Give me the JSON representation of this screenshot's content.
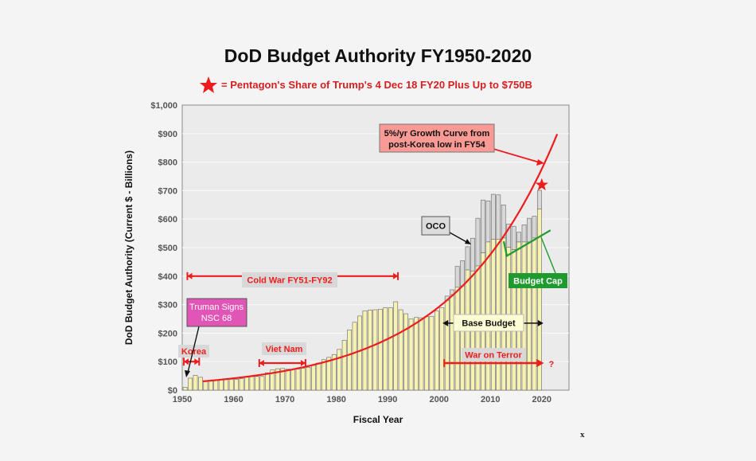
{
  "chart_data": {
    "type": "bar",
    "title": "DoD Budget Authority FY1950-2020",
    "subtitle": "= Pentagon's Share of Trump's 4 Dec 18 FY20 Plus Up to $750B",
    "xlabel": "Fiscal Year",
    "ylabel": "DoD Budget Authority (Current $ - Billions)",
    "xlim": [
      1950,
      2025.3
    ],
    "ylim": [
      0,
      1000
    ],
    "x_ticks": [
      1950,
      1960,
      1970,
      1980,
      1990,
      2000,
      2010,
      2020
    ],
    "y_ticks": [
      0,
      100,
      200,
      300,
      400,
      500,
      600,
      700,
      800,
      900,
      1000
    ],
    "y_tick_labels": [
      "$0",
      "$100",
      "$200",
      "$300",
      "$400",
      "$500",
      "$600",
      "$700",
      "$800",
      "$900",
      "$1,000"
    ],
    "grid": true,
    "stacked": true,
    "years": [
      1950,
      1951,
      1952,
      1953,
      1954,
      1955,
      1956,
      1957,
      1958,
      1959,
      1960,
      1961,
      1962,
      1963,
      1964,
      1965,
      1966,
      1967,
      1968,
      1969,
      1970,
      1971,
      1972,
      1973,
      1974,
      1975,
      1976,
      1977,
      1978,
      1979,
      1980,
      1981,
      1982,
      1983,
      1984,
      1985,
      1986,
      1987,
      1988,
      1989,
      1990,
      1991,
      1992,
      1993,
      1994,
      1995,
      1996,
      1997,
      1998,
      1999,
      2000,
      2001,
      2002,
      2003,
      2004,
      2005,
      2006,
      2007,
      2008,
      2009,
      2010,
      2011,
      2012,
      2013,
      2014,
      2015,
      2016,
      2017,
      2018,
      2019
    ],
    "series": [
      {
        "name": "Base Budget",
        "color": "#f7f2b2",
        "values": [
          10,
          42,
          52,
          45,
          30,
          32,
          35,
          36,
          37,
          38,
          38,
          40,
          46,
          47,
          48,
          48,
          61,
          71,
          75,
          76,
          74,
          72,
          74,
          77,
          80,
          87,
          95,
          107,
          115,
          125,
          143,
          175,
          211,
          238,
          260,
          278,
          281,
          282,
          284,
          289,
          289,
          310,
          282,
          268,
          250,
          255,
          254,
          258,
          259,
          278,
          289,
          315,
          335,
          361,
          366,
          422,
          417,
          436,
          482,
          520,
          529,
          529,
          534,
          501,
          493,
          520,
          520,
          520,
          534,
          636
        ]
      },
      {
        "name": "OCO",
        "color": "#d8d8d8",
        "values": [
          0,
          0,
          0,
          0,
          0,
          0,
          0,
          0,
          0,
          0,
          0,
          0,
          0,
          0,
          0,
          0,
          0,
          0,
          0,
          0,
          0,
          0,
          0,
          0,
          0,
          0,
          0,
          0,
          0,
          0,
          0,
          0,
          0,
          0,
          0,
          0,
          0,
          0,
          0,
          0,
          0,
          0,
          0,
          0,
          0,
          0,
          0,
          0,
          0,
          0,
          0,
          15,
          17,
          73,
          88,
          81,
          116,
          167,
          185,
          144,
          158,
          156,
          116,
          82,
          82,
          34,
          60,
          83,
          76,
          65
        ]
      }
    ],
    "growth_curve": {
      "label": "5%/yr Growth Curve from post-Korea low in FY54",
      "start_year": 1954,
      "start_value": 31,
      "rate": 0.05,
      "end_year": 2023,
      "color": "#ee1c1c"
    },
    "budget_cap": {
      "label": "Budget Cap",
      "color": "#1f9a2e",
      "points": [
        [
          2012.6,
          522
        ],
        [
          2013.2,
          471
        ],
        [
          2021.7,
          561
        ]
      ]
    },
    "star": {
      "year": 2020,
      "value": 720,
      "color": "#ee1c1c"
    },
    "annotations": {
      "cold_war": {
        "label": "Cold War FY51-FY92",
        "from": 1951,
        "to": 1992,
        "value": 400
      },
      "korea": {
        "label": "Korea",
        "from": 1950.3,
        "to": 1953.3,
        "value": 100
      },
      "viet_nam": {
        "label": "Viet Nam",
        "from": 1965,
        "to": 1974,
        "value": 95
      },
      "war_on_terror": {
        "label": "War on Terror",
        "from": 2001,
        "to": 2019.8,
        "value": 95,
        "suffix": "?"
      },
      "base_budget": {
        "label": "Base Budget",
        "from": 2001,
        "to": 2020,
        "value": 235
      },
      "oco": {
        "label": "OCO"
      },
      "truman": {
        "line1": "Truman Signs",
        "line2": "NSC 68",
        "color": "#e055b5"
      }
    }
  },
  "corner_mark": "x"
}
